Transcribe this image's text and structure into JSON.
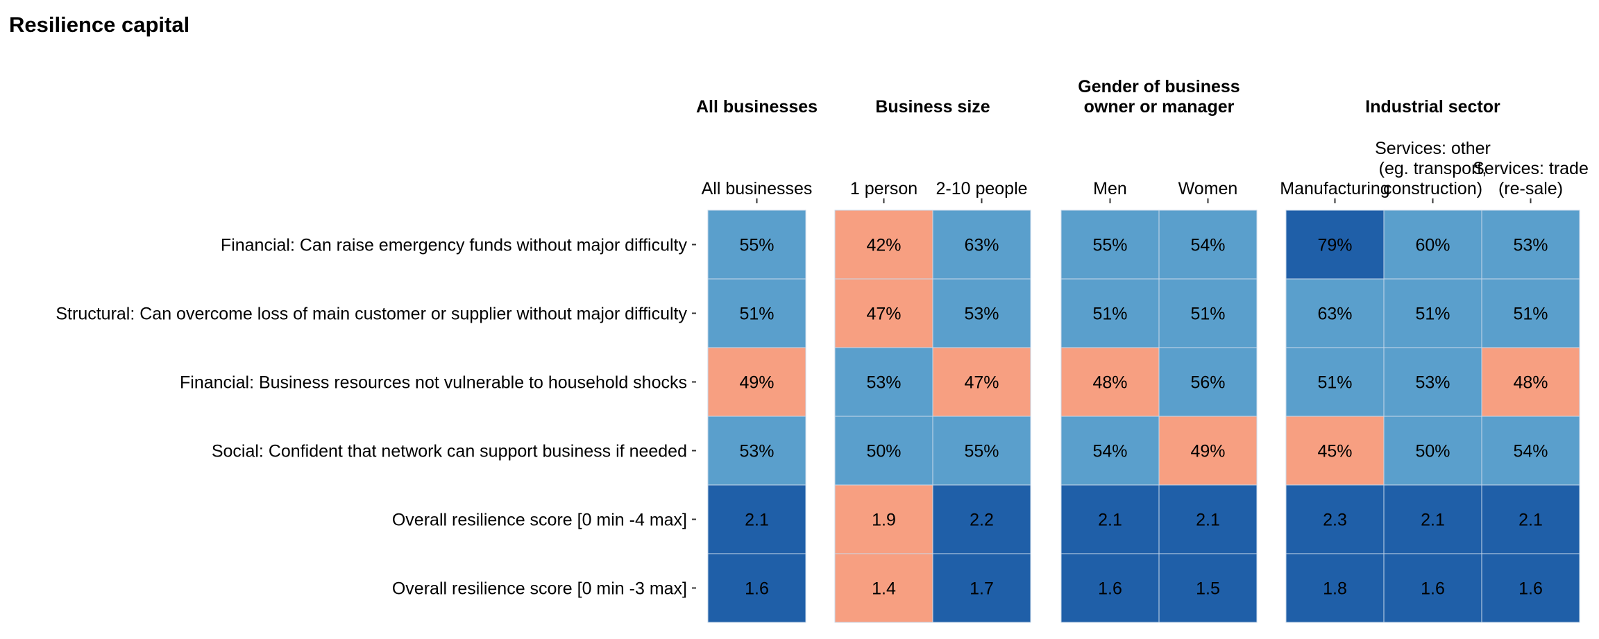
{
  "title": "Resilience capital",
  "colors": {
    "high": "#1f5fa8",
    "mid": "#5a9fcc",
    "low": "#f79f81",
    "grid": "#c9d9ea",
    "text": "#000000"
  },
  "chart_data": {
    "type": "heatmap",
    "title": "Resilience capital",
    "rows": [
      "Financial: Can raise emergency funds without major difficulty",
      "Structural: Can overcome loss of main customer or supplier without major difficulty",
      "Financial: Business resources not vulnerable to household shocks",
      "Social: Confident that network can support business if needed",
      "Overall resilience score [0 min -4 max]",
      "Overall resilience score [0 min -3 max]"
    ],
    "groups": [
      {
        "title": [
          "All businesses"
        ],
        "columns": [
          {
            "label": [
              "All businesses"
            ],
            "values": [
              "55%",
              "51%",
              "49%",
              "53%",
              "2.1",
              "1.6"
            ],
            "levels": [
              "mid",
              "mid",
              "low",
              "mid",
              "high",
              "high"
            ]
          }
        ]
      },
      {
        "title": [
          "Business size"
        ],
        "columns": [
          {
            "label": [
              "1 person"
            ],
            "values": [
              "42%",
              "47%",
              "53%",
              "50%",
              "1.9",
              "1.4"
            ],
            "levels": [
              "low",
              "low",
              "mid",
              "mid",
              "low",
              "low"
            ]
          },
          {
            "label": [
              "2-10 people"
            ],
            "values": [
              "63%",
              "53%",
              "47%",
              "55%",
              "2.2",
              "1.7"
            ],
            "levels": [
              "mid",
              "mid",
              "low",
              "mid",
              "high",
              "high"
            ]
          }
        ]
      },
      {
        "title": [
          "Gender of business",
          "owner or manager"
        ],
        "columns": [
          {
            "label": [
              "Men"
            ],
            "values": [
              "55%",
              "51%",
              "48%",
              "54%",
              "2.1",
              "1.6"
            ],
            "levels": [
              "mid",
              "mid",
              "low",
              "mid",
              "high",
              "high"
            ]
          },
          {
            "label": [
              "Women"
            ],
            "values": [
              "54%",
              "51%",
              "56%",
              "49%",
              "2.1",
              "1.5"
            ],
            "levels": [
              "mid",
              "mid",
              "mid",
              "low",
              "high",
              "high"
            ]
          }
        ]
      },
      {
        "title": [
          "Industrial sector"
        ],
        "columns": [
          {
            "label": [
              "Manufacturing"
            ],
            "values": [
              "79%",
              "63%",
              "51%",
              "45%",
              "2.3",
              "1.8"
            ],
            "levels": [
              "high",
              "mid",
              "mid",
              "low",
              "high",
              "high"
            ]
          },
          {
            "label": [
              "Services: other",
              "(eg. transport,",
              "construction)"
            ],
            "values": [
              "60%",
              "51%",
              "53%",
              "50%",
              "2.1",
              "1.6"
            ],
            "levels": [
              "mid",
              "mid",
              "mid",
              "mid",
              "high",
              "high"
            ]
          },
          {
            "label": [
              "Services: trade",
              "(re-sale)"
            ],
            "values": [
              "53%",
              "51%",
              "48%",
              "54%",
              "2.1",
              "1.6"
            ],
            "levels": [
              "mid",
              "mid",
              "low",
              "mid",
              "high",
              "high"
            ]
          }
        ]
      }
    ]
  }
}
